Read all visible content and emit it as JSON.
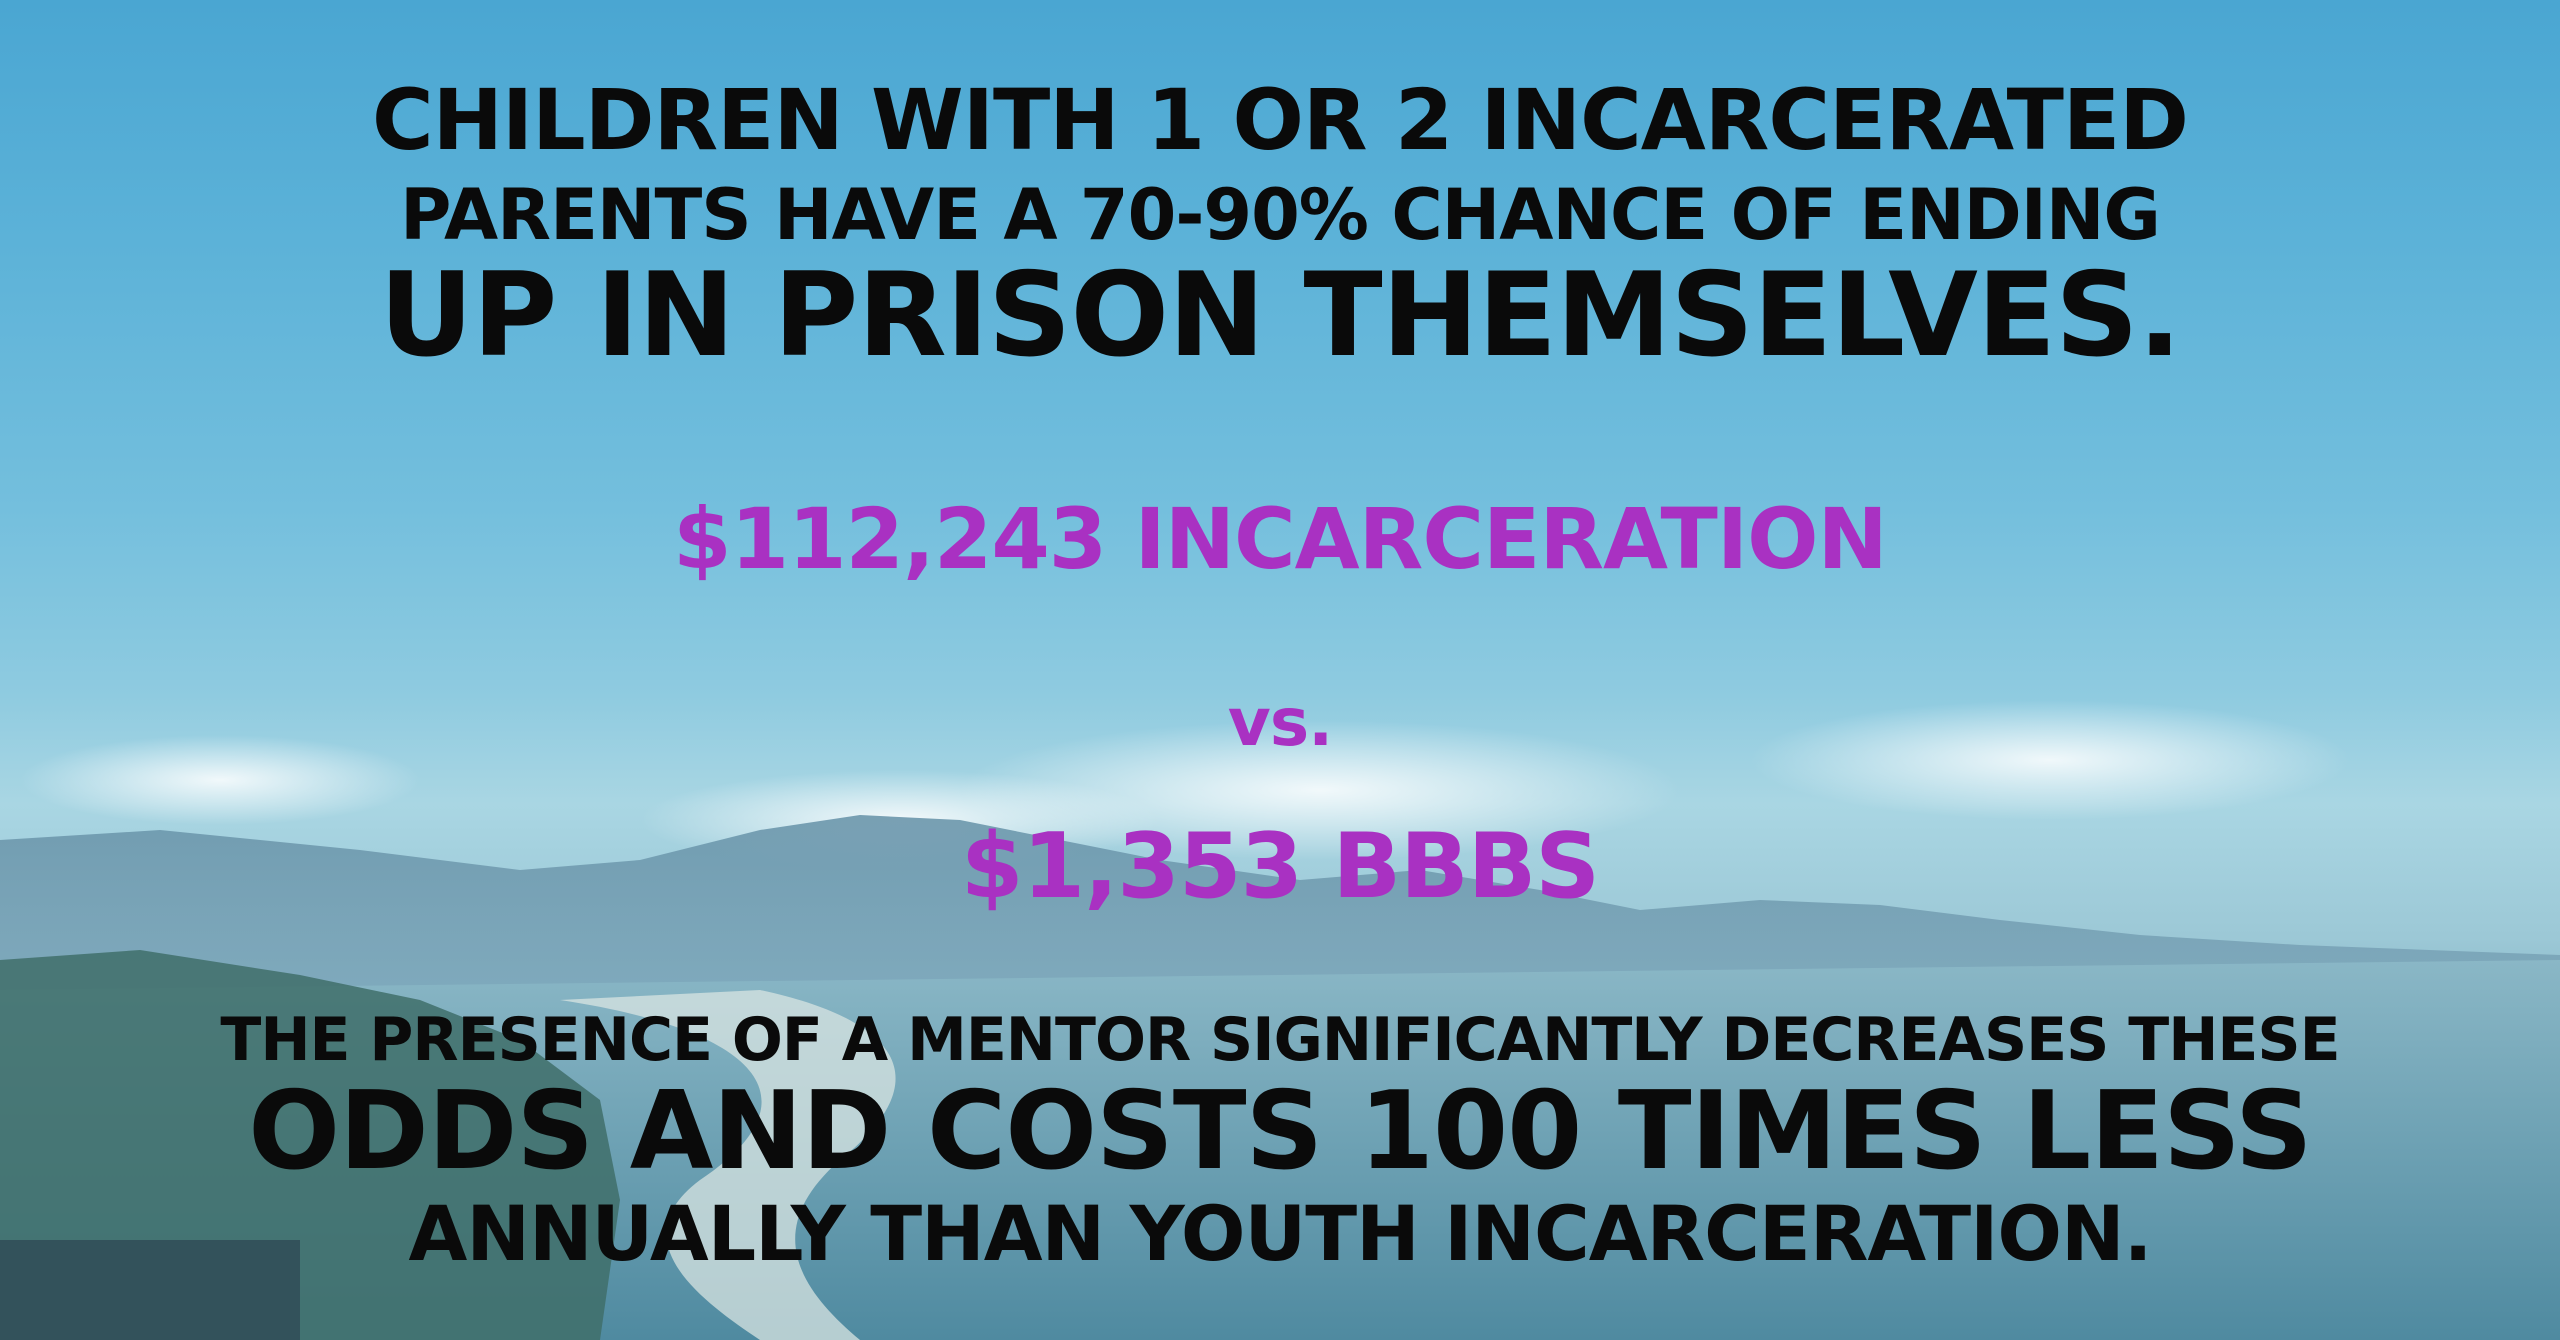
{
  "headline": {
    "line1": "CHILDREN WITH 1 OR 2 INCARCERATED",
    "line2": "PARENTS HAVE A 70-90% CHANCE OF ENDING",
    "line3": "UP IN PRISON THEMSELVES."
  },
  "comparison": {
    "incarceration_cost": "$112,243 INCARCERATION",
    "versus": "vs.",
    "bbbs_cost": "$1,353 BBBS"
  },
  "footer": {
    "line1": "THE PRESENCE OF A MENTOR SIGNIFICANTLY DECREASES THESE",
    "line2": "ODDS AND COSTS 100 TIMES LESS",
    "line3": "ANNUALLY THAN YOUTH INCARCERATION."
  },
  "colors": {
    "headline_text": "#0a0a0a",
    "stat_text": "#a931c2",
    "sky": "#4aa6d2",
    "ocean": "#5b93a8"
  }
}
